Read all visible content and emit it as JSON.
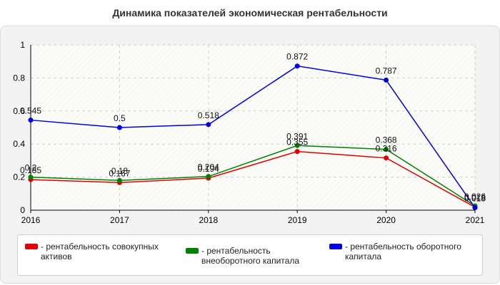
{
  "chart_data": {
    "type": "line",
    "title": "Динамика показателей экономическая рентабельности",
    "xlabel": "",
    "ylabel": "",
    "x": [
      "2016",
      "2017",
      "2018",
      "2019",
      "2020",
      "2021"
    ],
    "ylim": [
      0,
      1
    ],
    "yticks": [
      "0",
      "0.2",
      "0.4",
      "0.6",
      "0.8",
      "1"
    ],
    "grid": true,
    "legend_position": "bottom",
    "series": [
      {
        "name": "- рентабельность совокупных активов",
        "color": "#e00000",
        "values": [
          0.185,
          0.167,
          0.194,
          0.355,
          0.316,
          0.018
        ],
        "labels": [
          "0.185",
          "0.167",
          "0.194",
          "0.355",
          "0.316",
          "0.018"
        ]
      },
      {
        "name": "- рентабельность внеоборотного капитала",
        "color": "#008000",
        "values": [
          0.2,
          0.18,
          0.204,
          0.391,
          0.368,
          0.026
        ],
        "labels": [
          "0.2",
          "0.18",
          "0.204",
          "0.391",
          "0.368",
          "0.026"
        ]
      },
      {
        "name": "- рентабельность оборотного капитала",
        "color": "#0000e0",
        "values": [
          0.545,
          0.5,
          0.518,
          0.872,
          0.787,
          0.015
        ],
        "labels": [
          "0.545",
          "0.5",
          "0.518",
          "0.872",
          "0.787",
          "0.015"
        ]
      }
    ]
  }
}
